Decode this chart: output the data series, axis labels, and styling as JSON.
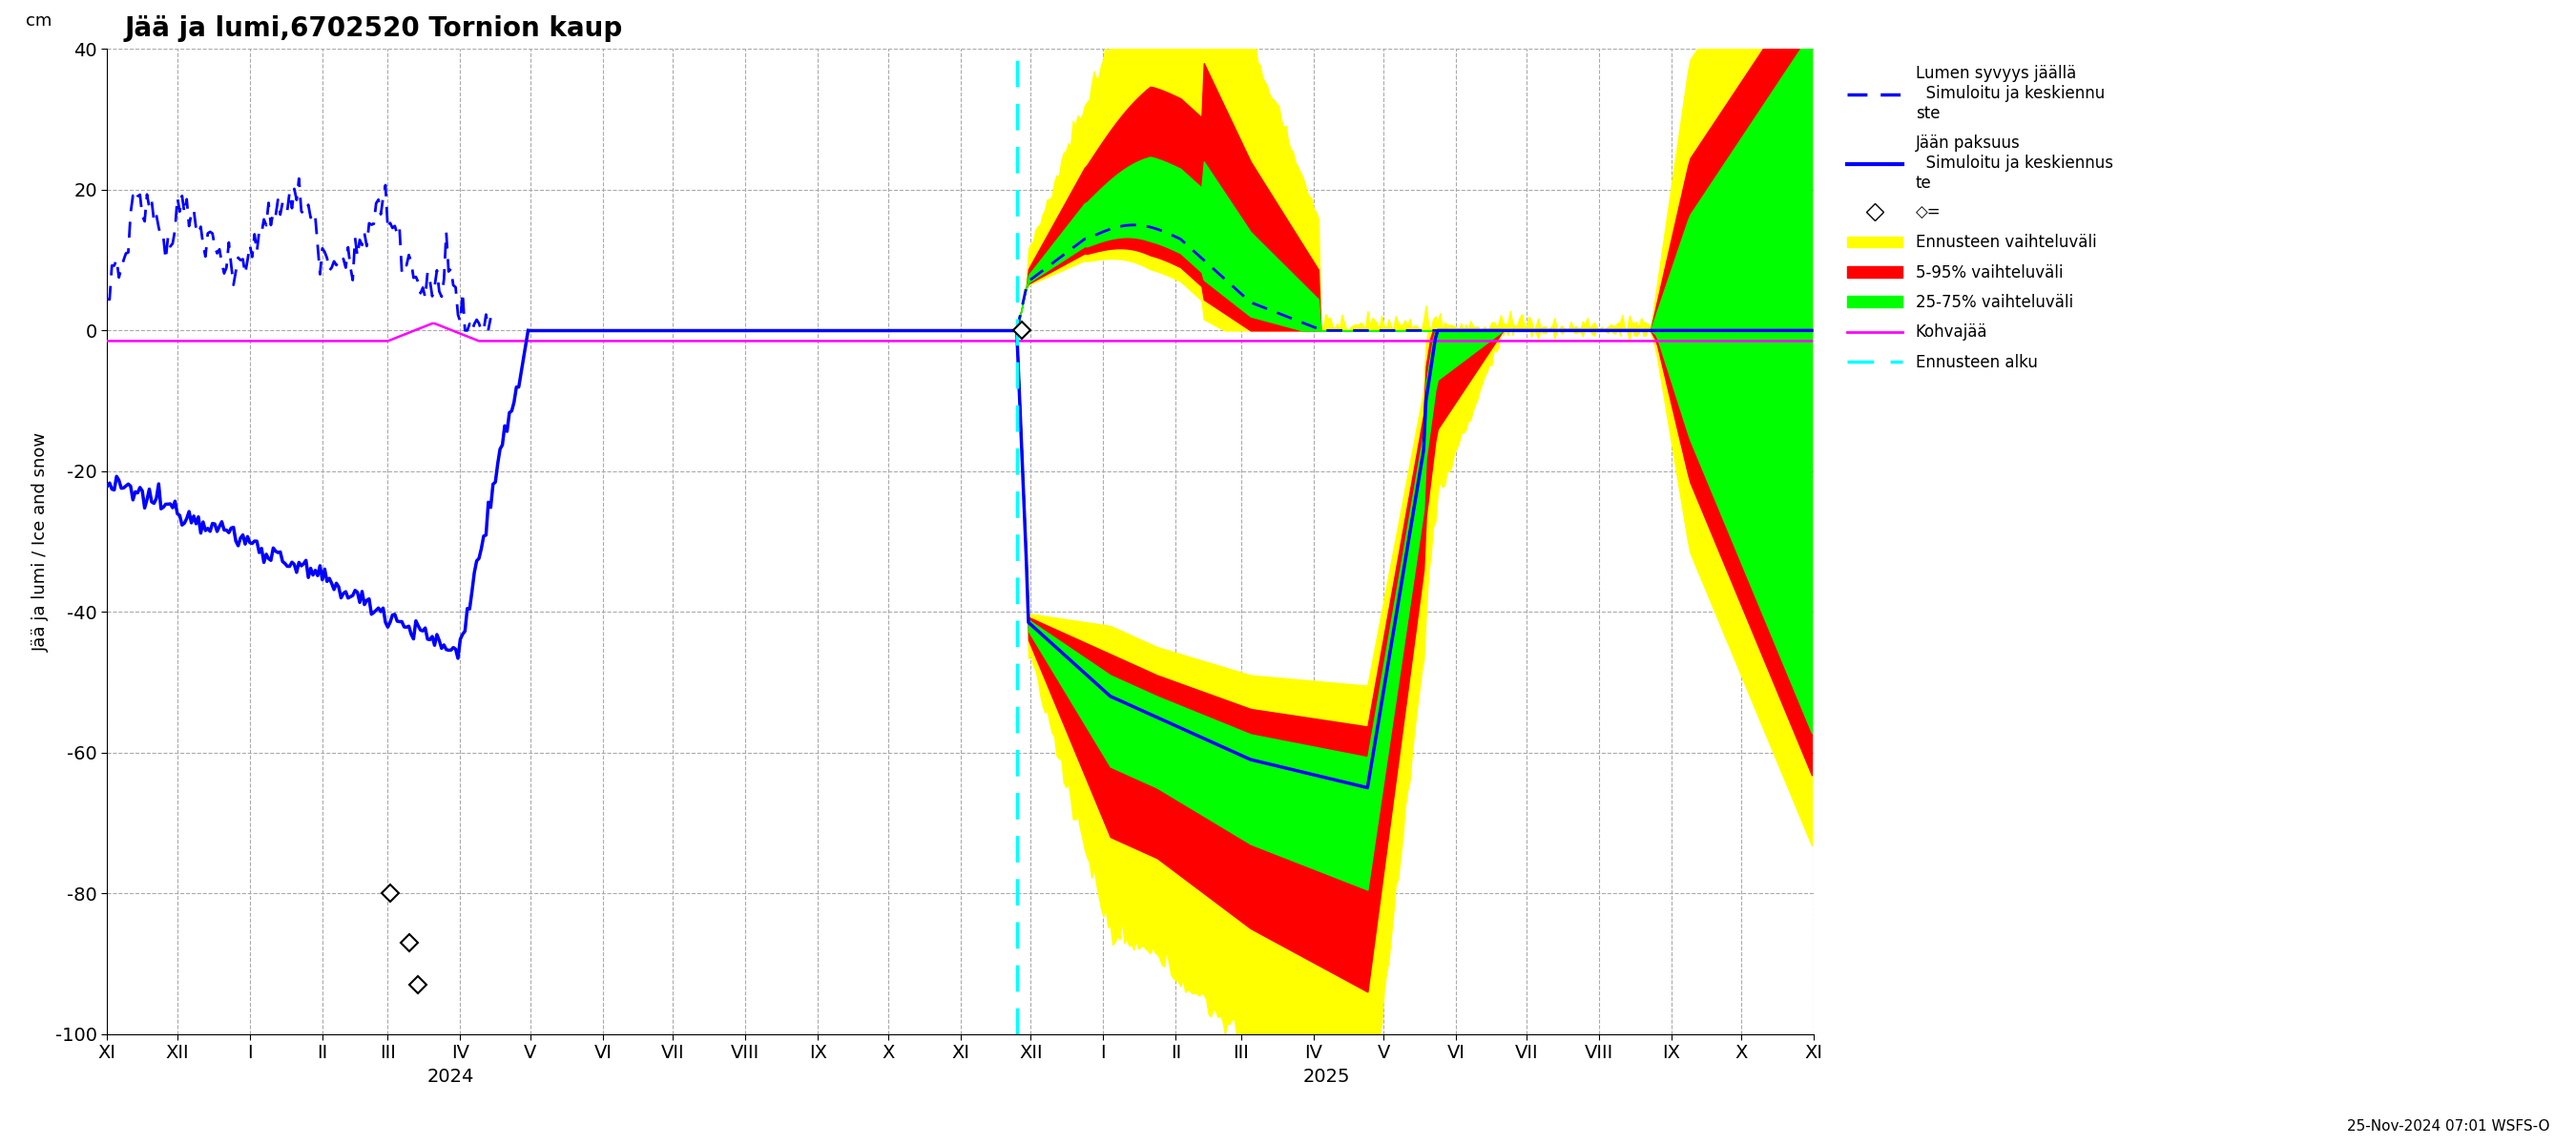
{
  "title": "Jää ja lumi,6702520 Tornion kaup",
  "ylabel": "Jää ja lumi / Ice and snow",
  "ylabel_cm": "cm",
  "ylim": [
    -100,
    40
  ],
  "yticks": [
    -100,
    -80,
    -60,
    -40,
    -20,
    0,
    20,
    40
  ],
  "xlim": [
    0,
    730
  ],
  "month_positions": [
    0,
    30,
    61,
    92,
    120,
    151,
    181,
    212,
    242,
    273,
    304,
    334,
    365,
    395,
    426,
    457,
    485,
    516,
    546,
    577,
    607,
    638,
    669,
    699,
    730
  ],
  "month_labels": [
    "XI",
    "XII",
    "I",
    "II",
    "III",
    "IV",
    "V",
    "VI",
    "VII",
    "VIII",
    "IX",
    "X",
    "XI",
    "XII",
    "I",
    "II",
    "III",
    "IV",
    "V",
    "VI",
    "VII",
    "VIII",
    "IX",
    "X",
    "XI"
  ],
  "year_2024_x": 90,
  "year_2025_x": 457,
  "ennusteen_alku": 389,
  "title_fontsize": 20,
  "tick_fontsize": 14,
  "ylabel_fontsize": 13,
  "timestamp": "25-Nov-2024 07:01 WSFS-O",
  "background_color": "#ffffff",
  "grid_color": "#aaaaaa",
  "colors": {
    "blue": "#0000ff",
    "magenta": "#ff00ff",
    "cyan": "#00ffff",
    "yellow": "#ffff00",
    "red": "#ff0000",
    "green": "#00ff00",
    "black": "#000000"
  }
}
